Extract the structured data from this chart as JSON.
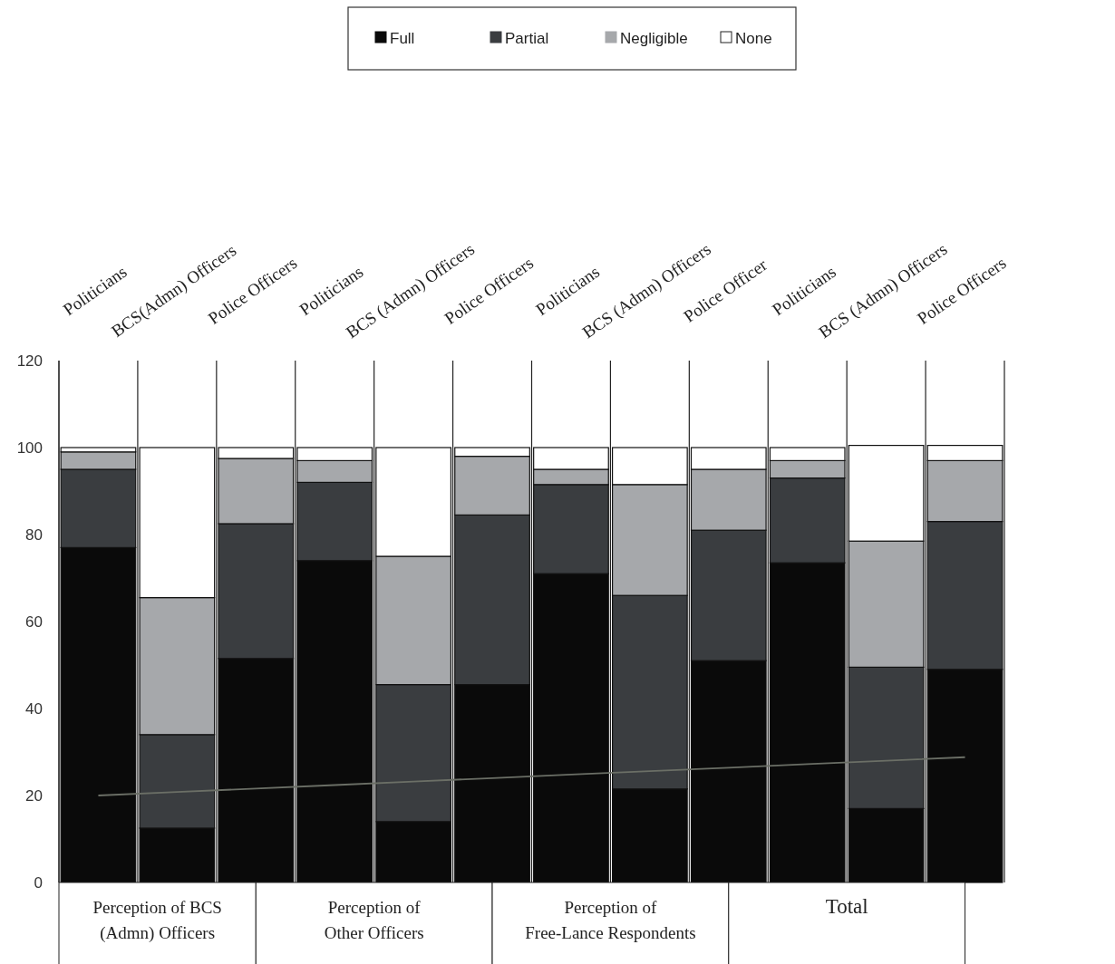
{
  "chart_data": {
    "type": "bar",
    "stacked": true,
    "categories": [
      "Politicians",
      "BCS(Admn) Officers",
      "Police Officers",
      "Politicians",
      "BCS (Admn) Officers",
      "Police Officers",
      "Politicians",
      "BCS (Admn) Officers",
      "Police Officer",
      "Politicians",
      "BCS (Admn) Officers",
      "Police Officers"
    ],
    "series": [
      {
        "name": "Full",
        "color": "#0a0a0a",
        "values": [
          77,
          12.5,
          51.5,
          74,
          14,
          45.5,
          71,
          21.5,
          51,
          73.5,
          17,
          49
        ]
      },
      {
        "name": "Partial",
        "color": "#3a3d40",
        "values": [
          18,
          21.5,
          31,
          18,
          31.5,
          39,
          20.5,
          44.5,
          30,
          19.5,
          32.5,
          34
        ]
      },
      {
        "name": "Negligible",
        "color": "#a6a8ab",
        "values": [
          4,
          31.5,
          15,
          5,
          29.5,
          13.5,
          3.5,
          25.5,
          14,
          4,
          29,
          14
        ]
      },
      {
        "name": "None",
        "color": "#ffffff",
        "values": [
          1,
          34.5,
          2.5,
          3,
          25,
          2,
          5,
          8.5,
          5,
          3,
          22,
          3.5
        ]
      },
      {
        "type": "line",
        "color": "#6b6f66",
        "values": [
          20,
          20.8,
          21.6,
          22.4,
          23.2,
          24,
          24.8,
          25.6,
          26.4,
          27.2,
          28,
          28.8
        ]
      }
    ],
    "ylim": [
      0,
      120
    ],
    "yticks": [
      0,
      20,
      40,
      60,
      80,
      100,
      120
    ],
    "grid": "x",
    "legend": "top",
    "annotations": [
      "Perception of BCS (Admn) Officers",
      "Perception of Other Officers",
      "Perception of Free-Lance Respondents",
      "Total"
    ]
  }
}
